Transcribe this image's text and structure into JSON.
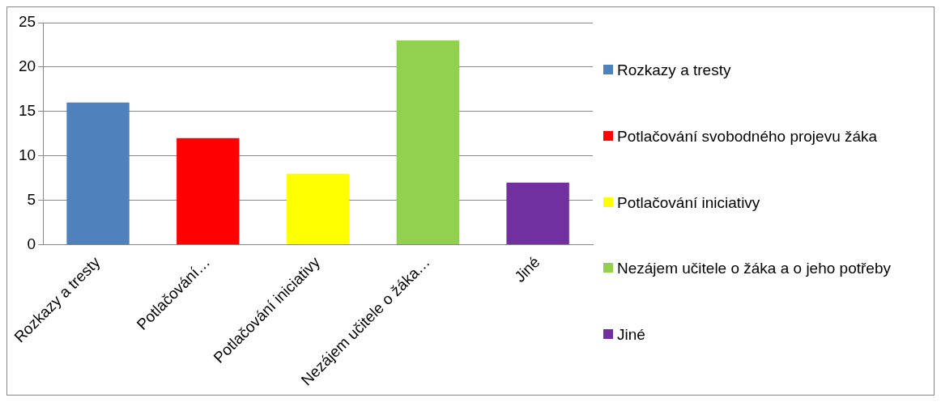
{
  "chart_data": {
    "type": "bar",
    "categories": [
      "Rozkazy a tresty",
      "Potlačování…",
      "Potlačování iniciativy",
      "Nezájem učitele o žáka…",
      "Jiné"
    ],
    "series": [
      {
        "name": "Rozkazy a tresty",
        "color": "#4f81bd",
        "values": [
          16,
          null,
          null,
          null,
          null
        ]
      },
      {
        "name": "Potlačování svobodného projevu žáka",
        "color": "#ff0000",
        "values": [
          null,
          12,
          null,
          null,
          null
        ]
      },
      {
        "name": "Potlačování iniciativy",
        "color": "#ffff00",
        "values": [
          null,
          null,
          8,
          null,
          null
        ]
      },
      {
        "name": "Nezájem učitele o žáka a o jeho potřeby",
        "color": "#92d050",
        "values": [
          null,
          null,
          null,
          23,
          null
        ]
      },
      {
        "name": "Jiné",
        "color": "#7030a0",
        "values": [
          null,
          null,
          null,
          null,
          7
        ]
      }
    ],
    "ylim": [
      0,
      25
    ],
    "yticks": [
      0,
      5,
      10,
      15,
      20,
      25
    ],
    "grid": "y",
    "legend": "right"
  }
}
